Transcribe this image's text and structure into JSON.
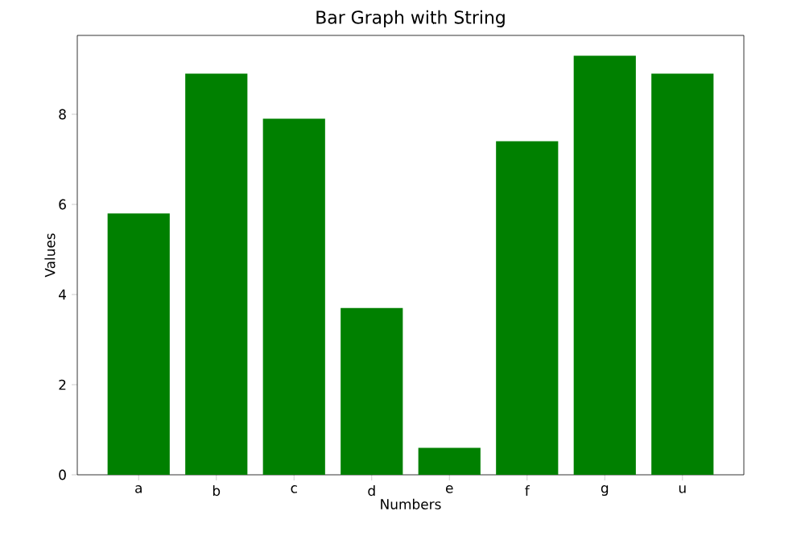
{
  "chart_data": {
    "type": "bar",
    "title": "Bar Graph with String",
    "xlabel": "Numbers",
    "ylabel": "Values",
    "categories": [
      "a",
      "b",
      "c",
      "d",
      "e",
      "f",
      "g",
      "u"
    ],
    "values": [
      5.8,
      8.9,
      7.9,
      3.7,
      0.6,
      7.4,
      9.3,
      8.9
    ],
    "color": "#008000",
    "ylim": [
      0,
      9.75
    ],
    "yticks": [
      0,
      2,
      4,
      6,
      8
    ],
    "grid": false
  }
}
